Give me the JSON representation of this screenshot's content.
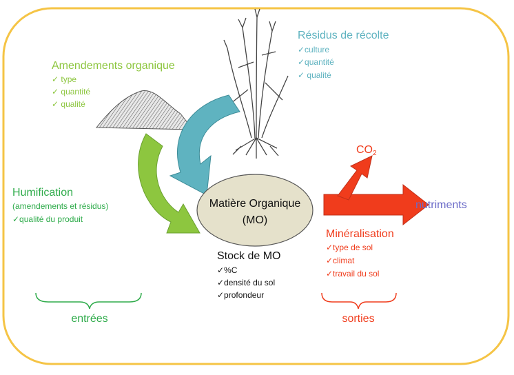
{
  "residues": {
    "title": "Résidus de récolte",
    "items": [
      "✓culture",
      "✓quantité",
      "✓ qualité"
    ]
  },
  "amendments": {
    "title": "Amendements organique",
    "items": [
      "✓ type",
      "✓ quantité",
      "✓ qualité"
    ]
  },
  "co2": {
    "text": "CO",
    "subscript": "2"
  },
  "humification": {
    "title": "Humification",
    "subtitle": "(amendements et résidus)",
    "items": [
      "✓qualité du produit"
    ]
  },
  "center": {
    "lines": [
      "Matière Organique",
      "(MO)"
    ]
  },
  "nutrients": "nutriments",
  "mineralisation": {
    "title": "Minéralisation",
    "items": [
      "✓type de sol",
      "✓climat",
      "✓travail du sol"
    ]
  },
  "stock": {
    "title": "Stock de MO",
    "items": [
      "✓%C",
      "✓densité du sol",
      "✓profondeur"
    ]
  },
  "inputs": "entrées",
  "outputs": "sorties"
}
